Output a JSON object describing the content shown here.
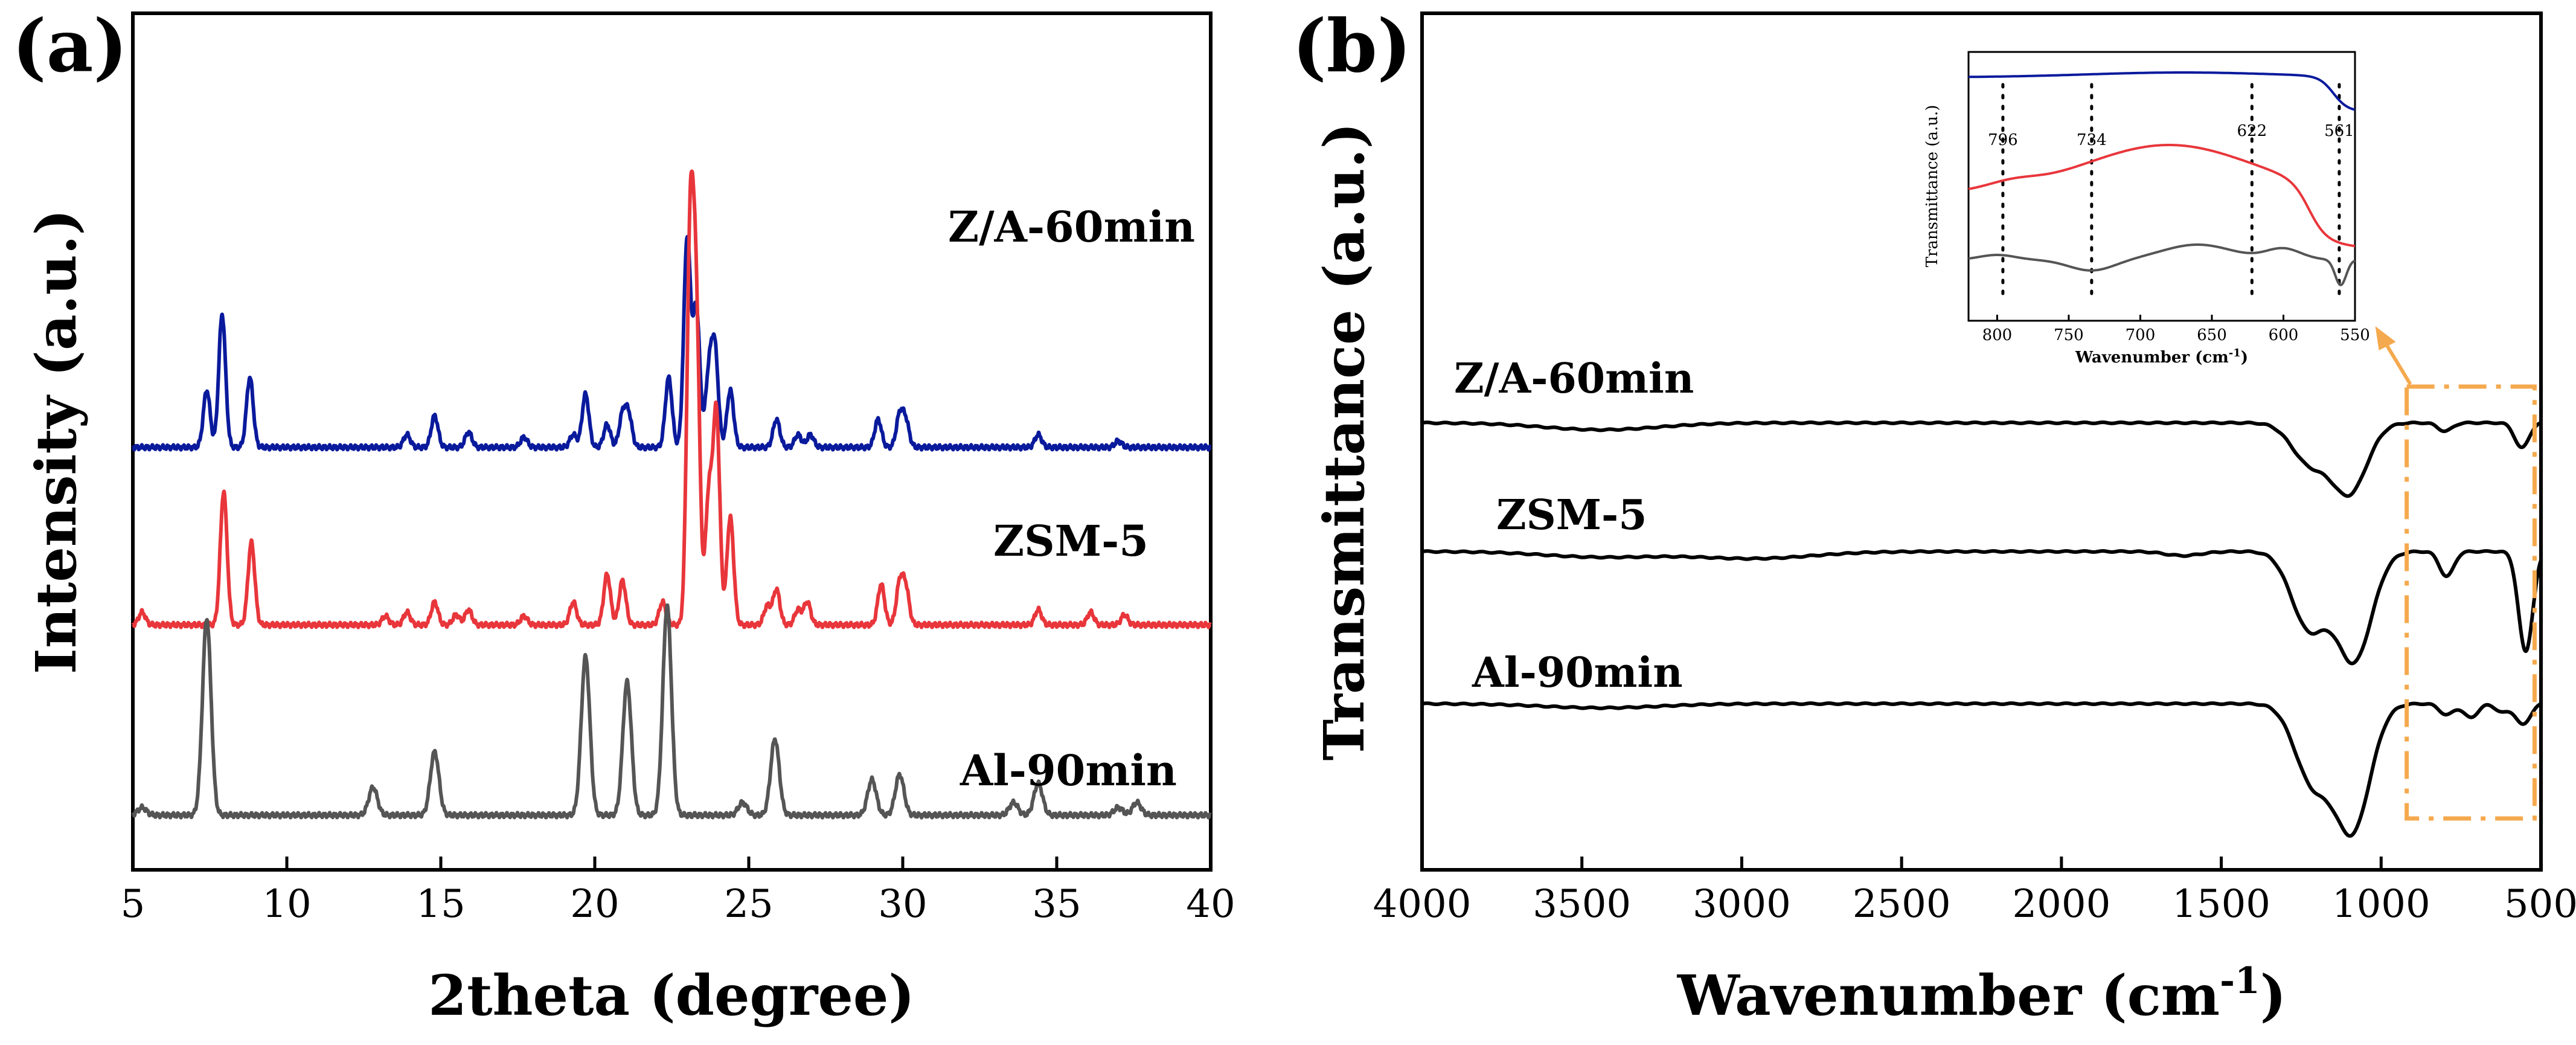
{
  "colors": {
    "blue": "#0a1a9c",
    "red": "#e8363b",
    "gray": "#555555",
    "black": "#000000",
    "orange": "#f5a94e"
  },
  "chart_data": [
    {
      "panel": "(a)",
      "type": "line",
      "title": "",
      "xlabel": "2theta (degree)",
      "ylabel": "Intensity (a.u.)",
      "xlim": [
        5,
        40
      ],
      "xticks": [
        "5",
        "10",
        "15",
        "20",
        "25",
        "30",
        "35",
        "40"
      ],
      "grid": false,
      "yticks_shown": false,
      "series": [
        {
          "name": "Z/A-60min",
          "color": "blue",
          "baseline": 2.95,
          "width": 0.11,
          "peaks": [
            [
              7.4,
              0.45
            ],
            [
              7.9,
              1.05
            ],
            [
              8.8,
              0.55
            ],
            [
              13.9,
              0.1
            ],
            [
              14.8,
              0.25
            ],
            [
              15.9,
              0.12
            ],
            [
              17.7,
              0.08
            ],
            [
              19.3,
              0.1
            ],
            [
              19.7,
              0.42
            ],
            [
              20.4,
              0.18
            ],
            [
              20.9,
              0.25
            ],
            [
              21.1,
              0.25
            ],
            [
              22.4,
              0.55
            ],
            [
              23.0,
              1.65
            ],
            [
              23.3,
              1.1
            ],
            [
              23.7,
              0.55
            ],
            [
              23.9,
              0.75
            ],
            [
              24.4,
              0.45
            ],
            [
              25.9,
              0.22
            ],
            [
              26.6,
              0.1
            ],
            [
              27.0,
              0.1
            ],
            [
              29.2,
              0.22
            ],
            [
              29.9,
              0.25
            ],
            [
              30.1,
              0.2
            ],
            [
              34.4,
              0.1
            ],
            [
              37.0,
              0.05
            ]
          ]
        },
        {
          "name": "ZSM-5",
          "color": "red",
          "baseline": 1.55,
          "width": 0.11,
          "peaks": [
            [
              5.3,
              0.1
            ],
            [
              7.95,
              1.05
            ],
            [
              8.85,
              0.65
            ],
            [
              13.2,
              0.07
            ],
            [
              13.9,
              0.1
            ],
            [
              14.8,
              0.18
            ],
            [
              15.5,
              0.08
            ],
            [
              15.9,
              0.12
            ],
            [
              17.7,
              0.07
            ],
            [
              19.3,
              0.18
            ],
            [
              20.4,
              0.4
            ],
            [
              20.9,
              0.35
            ],
            [
              22.2,
              0.18
            ],
            [
              23.1,
              3.0
            ],
            [
              23.3,
              2.25
            ],
            [
              23.7,
              1.0
            ],
            [
              23.95,
              1.65
            ],
            [
              24.4,
              0.85
            ],
            [
              25.6,
              0.15
            ],
            [
              25.9,
              0.28
            ],
            [
              26.6,
              0.12
            ],
            [
              26.9,
              0.18
            ],
            [
              29.3,
              0.32
            ],
            [
              29.9,
              0.32
            ],
            [
              30.1,
              0.28
            ],
            [
              34.4,
              0.12
            ],
            [
              36.1,
              0.1
            ],
            [
              37.2,
              0.08
            ]
          ]
        },
        {
          "name": "Al-90min",
          "color": "gray",
          "baseline": 0.05,
          "width": 0.14,
          "peaks": [
            [
              5.3,
              0.06
            ],
            [
              7.4,
              1.55
            ],
            [
              12.8,
              0.22
            ],
            [
              14.8,
              0.5
            ],
            [
              19.7,
              1.25
            ],
            [
              21.05,
              1.05
            ],
            [
              22.35,
              1.65
            ],
            [
              24.8,
              0.1
            ],
            [
              25.85,
              0.6
            ],
            [
              29.0,
              0.28
            ],
            [
              29.9,
              0.32
            ],
            [
              33.6,
              0.1
            ],
            [
              34.4,
              0.25
            ],
            [
              37.0,
              0.06
            ],
            [
              37.6,
              0.1
            ]
          ]
        }
      ]
    },
    {
      "panel": "(b)",
      "type": "line",
      "title": "",
      "xlabel": "Wavenumber (cm",
      "xlabel_sup": "-1",
      "xlabel_close": ")",
      "ylabel": "Transmittance (a.u.)",
      "xlim": [
        4000,
        500
      ],
      "xticks": [
        "4000",
        "3500",
        "3000",
        "2500",
        "2000",
        "1500",
        "1000",
        "500"
      ],
      "grid": false,
      "yticks_shown": false,
      "highlight_box": {
        "x_range": [
          920,
          520
        ],
        "color": "orange"
      },
      "series": [
        {
          "name": "Z/A-60min",
          "color": "black",
          "baseline": 0.0,
          "dips": [
            [
              3440,
              0.05
            ],
            [
              1225,
              0.28
            ],
            [
              1100,
              0.5
            ],
            [
              800,
              0.06
            ],
            [
              560,
              0.18
            ]
          ]
        },
        {
          "name": "ZSM-5",
          "color": "black",
          "baseline": 0.0,
          "dips": [
            [
              3440,
              0.04
            ],
            [
              2960,
              0.05
            ],
            [
              1620,
              0.03
            ],
            [
              1225,
              0.55
            ],
            [
              1085,
              0.78
            ],
            [
              795,
              0.18
            ],
            [
              548,
              0.72
            ]
          ]
        },
        {
          "name": "Al-90min",
          "color": "black",
          "baseline": 0.0,
          "dips": [
            [
              3440,
              0.03
            ],
            [
              1215,
              0.55
            ],
            [
              1090,
              0.9
            ],
            [
              795,
              0.08
            ],
            [
              720,
              0.1
            ],
            [
              620,
              0.06
            ],
            [
              556,
              0.15
            ]
          ]
        }
      ],
      "inset": {
        "xlabel": "Wavenumber (cm",
        "xlabel_sup": "-1",
        "xlabel_close": ")",
        "ylabel": "Transmittance (a.u.)",
        "xlim": [
          820,
          550
        ],
        "xticks": [
          "800",
          "750",
          "700",
          "650",
          "600",
          "550"
        ],
        "markers": [
          "796",
          "734",
          "622",
          "561"
        ],
        "marker_values": [
          796,
          734,
          622,
          561
        ],
        "series": [
          {
            "name": "Z/A-60min",
            "color": "blue"
          },
          {
            "name": "ZSM-5",
            "color": "red"
          },
          {
            "name": "Al-90min",
            "color": "gray"
          }
        ]
      }
    }
  ]
}
